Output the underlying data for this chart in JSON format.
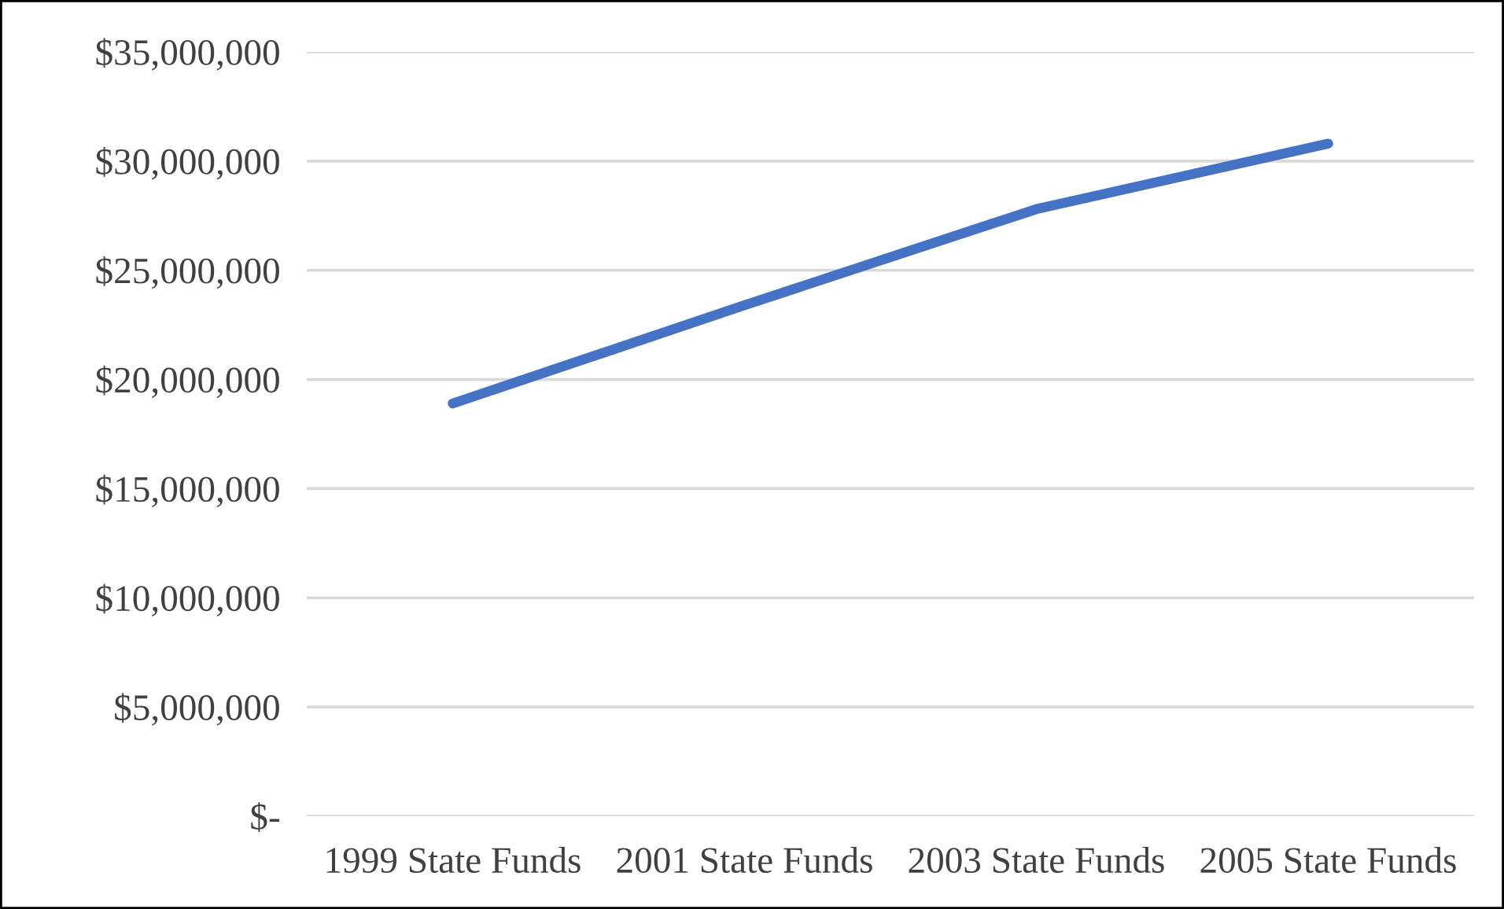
{
  "chart_data": {
    "type": "line",
    "categories": [
      "1999 State Funds",
      "2001 State Funds",
      "2003 State Funds",
      "2005 State Funds"
    ],
    "series": [
      {
        "color": "#4472c4",
        "values": [
          18900000,
          23400000,
          27800000,
          30800000
        ]
      }
    ],
    "ylim": [
      0,
      35000000
    ],
    "yticks": [
      {
        "value": 0,
        "label": "$-"
      },
      {
        "value": 5000000,
        "label": "$5,000,000"
      },
      {
        "value": 10000000,
        "label": "$10,000,000"
      },
      {
        "value": 15000000,
        "label": "$15,000,000"
      },
      {
        "value": 20000000,
        "label": "$20,000,000"
      },
      {
        "value": 25000000,
        "label": "$25,000,000"
      },
      {
        "value": 30000000,
        "label": "$30,000,000"
      },
      {
        "value": 35000000,
        "label": "$35,000,000"
      }
    ],
    "grid": "y",
    "marker": "none",
    "line_style": "solid"
  }
}
